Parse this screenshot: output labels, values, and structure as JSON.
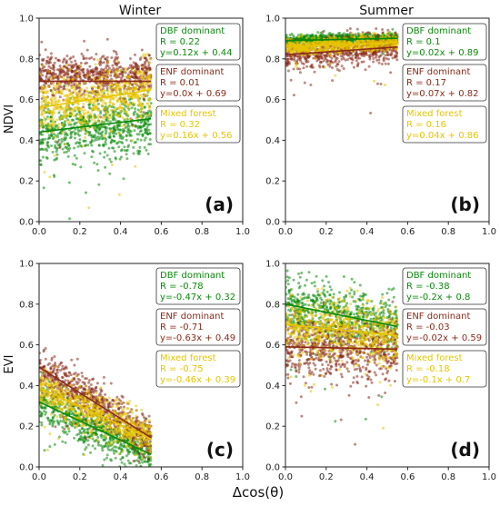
{
  "figure": {
    "col_titles": [
      "Winter",
      "Summer"
    ],
    "ylabels": [
      "NDVI",
      "EVI"
    ],
    "xlabel": "Δcos(θ)"
  },
  "chart_data": [
    {
      "type": "scatter",
      "panel": "(a)",
      "season": "Winter",
      "ylabel": "NDVI",
      "xlim": [
        0,
        1
      ],
      "ylim": [
        0,
        1
      ],
      "xticks": [
        "0.0",
        "0.2",
        "0.4",
        "0.6",
        "0.8",
        "1.0"
      ],
      "yticks": [
        "0.0",
        "0.2",
        "0.4",
        "0.6",
        "0.8",
        "1.0"
      ],
      "series": [
        {
          "name": "DBF dominant",
          "color": "#0a8a0a",
          "x_range": [
            0.0,
            0.55
          ],
          "y_center": 0.46,
          "y_spread": 0.07,
          "fit": {
            "slope": 0.12,
            "intercept": 0.44
          },
          "stats": [
            "DBF dominant",
            "R = 0.22",
            "y=0.12x + 0.44"
          ]
        },
        {
          "name": "ENF dominant",
          "color": "#8b2a1a",
          "x_range": [
            0.0,
            0.55
          ],
          "y_center": 0.72,
          "y_spread": 0.05,
          "fit": {
            "slope": 0.0,
            "intercept": 0.69
          },
          "stats": [
            "ENF dominant",
            "R = 0.01",
            "y=0.0x + 0.69"
          ]
        },
        {
          "name": "Mixed forest",
          "color": "#e8c400",
          "x_range": [
            0.0,
            0.55
          ],
          "y_center": 0.6,
          "y_spread": 0.07,
          "fit": {
            "slope": 0.16,
            "intercept": 0.56
          },
          "stats": [
            "Mixed forest",
            "R = 0.32",
            "y=0.16x + 0.56"
          ]
        }
      ]
    },
    {
      "type": "scatter",
      "panel": "(b)",
      "season": "Summer",
      "ylabel": "",
      "xlim": [
        0,
        1
      ],
      "ylim": [
        0,
        1
      ],
      "xticks": [
        "0.0",
        "0.2",
        "0.4",
        "0.6",
        "0.8",
        "1.0"
      ],
      "yticks": [
        "0.0",
        "0.2",
        "0.4",
        "0.6",
        "0.8",
        "1.0"
      ],
      "series": [
        {
          "name": "DBF dominant",
          "color": "#0a8a0a",
          "x_range": [
            0.0,
            0.55
          ],
          "y_center": 0.9,
          "y_spread": 0.012,
          "fit": {
            "slope": 0.02,
            "intercept": 0.89
          },
          "stats": [
            "DBF dominant",
            "R = 0.1",
            "y=0.02x + 0.89"
          ]
        },
        {
          "name": "ENF dominant",
          "color": "#8b2a1a",
          "x_range": [
            0.0,
            0.55
          ],
          "y_center": 0.84,
          "y_spread": 0.035,
          "fit": {
            "slope": 0.07,
            "intercept": 0.82
          },
          "stats": [
            "ENF dominant",
            "R = 0.17",
            "y=0.07x + 0.82"
          ]
        },
        {
          "name": "Mixed forest",
          "color": "#e8c400",
          "x_range": [
            0.0,
            0.55
          ],
          "y_center": 0.87,
          "y_spread": 0.02,
          "fit": {
            "slope": 0.04,
            "intercept": 0.86
          },
          "stats": [
            "Mixed forest",
            "R = 0.16",
            "y=0.04x + 0.86"
          ]
        }
      ]
    },
    {
      "type": "scatter",
      "panel": "(c)",
      "season": "Winter",
      "ylabel": "EVI",
      "xlim": [
        0,
        1
      ],
      "ylim": [
        0,
        1
      ],
      "xticks": [
        "0.0",
        "0.2",
        "0.4",
        "0.6",
        "0.8",
        "1.0"
      ],
      "yticks": [
        "0.0",
        "0.2",
        "0.4",
        "0.6",
        "0.8",
        "1.0"
      ],
      "series": [
        {
          "name": "DBF dominant",
          "color": "#0a8a0a",
          "x_range": [
            0.0,
            0.55
          ],
          "y_center": null,
          "y_spread": 0.05,
          "fit": {
            "slope": -0.47,
            "intercept": 0.32
          },
          "stats": [
            "DBF dominant",
            "R = -0.78",
            "y=-0.47x + 0.32"
          ]
        },
        {
          "name": "ENF dominant",
          "color": "#8b2a1a",
          "x_range": [
            0.0,
            0.55
          ],
          "y_center": null,
          "y_spread": 0.05,
          "fit": {
            "slope": -0.63,
            "intercept": 0.49
          },
          "stats": [
            "ENF dominant",
            "R = -0.71",
            "y=-0.63x + 0.49"
          ]
        },
        {
          "name": "Mixed forest",
          "color": "#e8c400",
          "x_range": [
            0.0,
            0.55
          ],
          "y_center": null,
          "y_spread": 0.05,
          "fit": {
            "slope": -0.46,
            "intercept": 0.39
          },
          "stats": [
            "Mixed forest",
            "R = -0.75",
            "y=-0.46x + 0.39"
          ]
        }
      ]
    },
    {
      "type": "scatter",
      "panel": "(d)",
      "season": "Summer",
      "ylabel": "",
      "xlim": [
        0,
        1
      ],
      "ylim": [
        0,
        1
      ],
      "xticks": [
        "0.0",
        "0.2",
        "0.4",
        "0.6",
        "0.8",
        "1.0"
      ],
      "yticks": [
        "0.0",
        "0.2",
        "0.4",
        "0.6",
        "0.8",
        "1.0"
      ],
      "series": [
        {
          "name": "DBF dominant",
          "color": "#0a8a0a",
          "x_range": [
            0.0,
            0.55
          ],
          "y_center": null,
          "y_spread": 0.07,
          "fit": {
            "slope": -0.2,
            "intercept": 0.8
          },
          "stats": [
            "DBF dominant",
            "R = -0.38",
            "y=-0.2x + 0.8"
          ]
        },
        {
          "name": "ENF dominant",
          "color": "#8b2a1a",
          "x_range": [
            0.0,
            0.55
          ],
          "y_center": null,
          "y_spread": 0.07,
          "fit": {
            "slope": -0.02,
            "intercept": 0.59
          },
          "stats": [
            "ENF dominant",
            "R = -0.03",
            "y=-0.02x + 0.59"
          ]
        },
        {
          "name": "Mixed forest",
          "color": "#e8c400",
          "x_range": [
            0.0,
            0.55
          ],
          "y_center": null,
          "y_spread": 0.07,
          "fit": {
            "slope": -0.1,
            "intercept": 0.7
          },
          "stats": [
            "Mixed forest",
            "R = -0.18",
            "y=-0.1x + 0.7"
          ]
        }
      ]
    }
  ]
}
